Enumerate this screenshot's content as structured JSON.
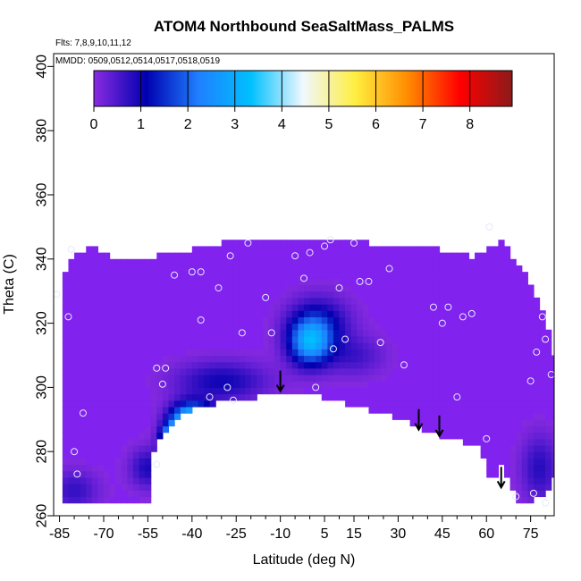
{
  "chart_data": {
    "type": "heatmap",
    "title": "ATOM4 Northbound SeaSaltMass_PALMS",
    "annotations": {
      "flights": "Flts: 7,8,9,10,11,12",
      "dates": "MMDD: 0509,0512,0514,0517,0518,0519"
    },
    "xlabel": "Latitude (deg N)",
    "ylabel": "Theta (C)",
    "xlim": [
      -87,
      83
    ],
    "ylim": [
      260,
      404
    ],
    "x_ticks": [
      -85,
      -70,
      -55,
      -40,
      -25,
      -10,
      5,
      15,
      30,
      45,
      60,
      75
    ],
    "y_ticks": [
      260,
      280,
      300,
      320,
      340,
      360,
      380,
      400
    ],
    "colorbar": {
      "range": [
        0,
        8.9
      ],
      "ticks": [
        0,
        1,
        2,
        3,
        4,
        5,
        6,
        7,
        8
      ],
      "colors": [
        "#8a2be2",
        "#0000b0",
        "#1f7fff",
        "#00c0ff",
        "#f0f8ff",
        "#ffee40",
        "#ff8c00",
        "#ff0000",
        "#8b1a1a"
      ]
    },
    "background_value_color": "#8122ee",
    "hotspots": [
      {
        "lat": 0,
        "theta": 314,
        "value": 2.6,
        "spread_lat": 7,
        "spread_theta": 7
      },
      {
        "lat": 3,
        "theta": 320,
        "value": 1.2,
        "spread_lat": 10,
        "spread_theta": 8
      },
      {
        "lat": -40,
        "theta": 290,
        "value": 3.8,
        "spread_lat": 7,
        "spread_theta": 5
      },
      {
        "lat": -46,
        "theta": 284,
        "value": 4.8,
        "spread_lat": 4,
        "spread_theta": 4
      },
      {
        "lat": -30,
        "theta": 302,
        "value": 1.0,
        "spread_lat": 15,
        "spread_theta": 6
      },
      {
        "lat": -55,
        "theta": 275,
        "value": 0.9,
        "spread_lat": 6,
        "spread_theta": 6
      },
      {
        "lat": -80,
        "theta": 268,
        "value": 0.7,
        "spread_lat": 8,
        "spread_theta": 6
      },
      {
        "lat": 78,
        "theta": 275,
        "value": 0.8,
        "spread_lat": 6,
        "spread_theta": 10
      },
      {
        "lat": 15,
        "theta": 310,
        "value": 0.6,
        "spread_lat": 10,
        "spread_theta": 6
      }
    ],
    "data_top_boundary": [
      [
        -85,
        332
      ],
      [
        -80,
        340
      ],
      [
        -75,
        343
      ],
      [
        -68,
        340
      ],
      [
        -58,
        339
      ],
      [
        -45,
        341
      ],
      [
        -30,
        344
      ],
      [
        -15,
        345
      ],
      [
        0,
        346
      ],
      [
        10,
        345
      ],
      [
        20,
        344
      ],
      [
        30,
        343
      ],
      [
        45,
        342
      ],
      [
        55,
        340
      ],
      [
        60,
        342
      ],
      [
        66,
        345
      ],
      [
        70,
        338
      ],
      [
        75,
        332
      ],
      [
        80,
        322
      ],
      [
        83,
        310
      ]
    ],
    "data_bottom_boundary": [
      [
        -84,
        264
      ],
      [
        -55,
        264
      ],
      [
        -54,
        278
      ],
      [
        -50,
        285
      ],
      [
        -45,
        291
      ],
      [
        -38,
        294
      ],
      [
        -28,
        296
      ],
      [
        -18,
        297
      ],
      [
        -5,
        298
      ],
      [
        5,
        297
      ],
      [
        15,
        294
      ],
      [
        25,
        292
      ],
      [
        35,
        289
      ],
      [
        40,
        286
      ],
      [
        45,
        285
      ],
      [
        52,
        283
      ],
      [
        58,
        281
      ],
      [
        62,
        270
      ],
      [
        65,
        276
      ],
      [
        70,
        265
      ],
      [
        75,
        264
      ],
      [
        82,
        268
      ],
      [
        83,
        272
      ]
    ],
    "flight_points": [
      [
        -86,
        329
      ],
      [
        -82,
        322
      ],
      [
        -81,
        343
      ],
      [
        -80,
        280
      ],
      [
        -79,
        273
      ],
      [
        -77,
        292
      ],
      [
        -52,
        306
      ],
      [
        -50,
        301
      ],
      [
        -49,
        306
      ],
      [
        -52,
        276
      ],
      [
        -46,
        335
      ],
      [
        -40,
        336
      ],
      [
        -37,
        336
      ],
      [
        -37,
        321
      ],
      [
        -34,
        297
      ],
      [
        -31,
        331
      ],
      [
        -28,
        300
      ],
      [
        -27,
        341
      ],
      [
        -26,
        296
      ],
      [
        -23,
        317
      ],
      [
        -21,
        345
      ],
      [
        -15,
        328
      ],
      [
        -13,
        317
      ],
      [
        -5,
        341
      ],
      [
        -2,
        334
      ],
      [
        0,
        342
      ],
      [
        2,
        300
      ],
      [
        5,
        344
      ],
      [
        7,
        346
      ],
      [
        8,
        312
      ],
      [
        10,
        331
      ],
      [
        12,
        315
      ],
      [
        15,
        345
      ],
      [
        17,
        333
      ],
      [
        20,
        333
      ],
      [
        24,
        314
      ],
      [
        27,
        337
      ],
      [
        32,
        307
      ],
      [
        42,
        325
      ],
      [
        45,
        320
      ],
      [
        47,
        325
      ],
      [
        50,
        297
      ],
      [
        52,
        322
      ],
      [
        55,
        323
      ],
      [
        60,
        284
      ],
      [
        61,
        350
      ],
      [
        75,
        302
      ],
      [
        76,
        267
      ],
      [
        77,
        311
      ],
      [
        79,
        322
      ],
      [
        80,
        315
      ],
      [
        82,
        304
      ],
      [
        80,
        264
      ],
      [
        70,
        266
      ]
    ],
    "profile_markers": [
      {
        "lat": -10,
        "theta": 303,
        "label": ""
      },
      {
        "lat": 37,
        "theta": 291,
        "label": ""
      },
      {
        "lat": 44,
        "theta": 289,
        "label": ""
      },
      {
        "lat": 65,
        "theta": 273,
        "label": ""
      }
    ]
  }
}
